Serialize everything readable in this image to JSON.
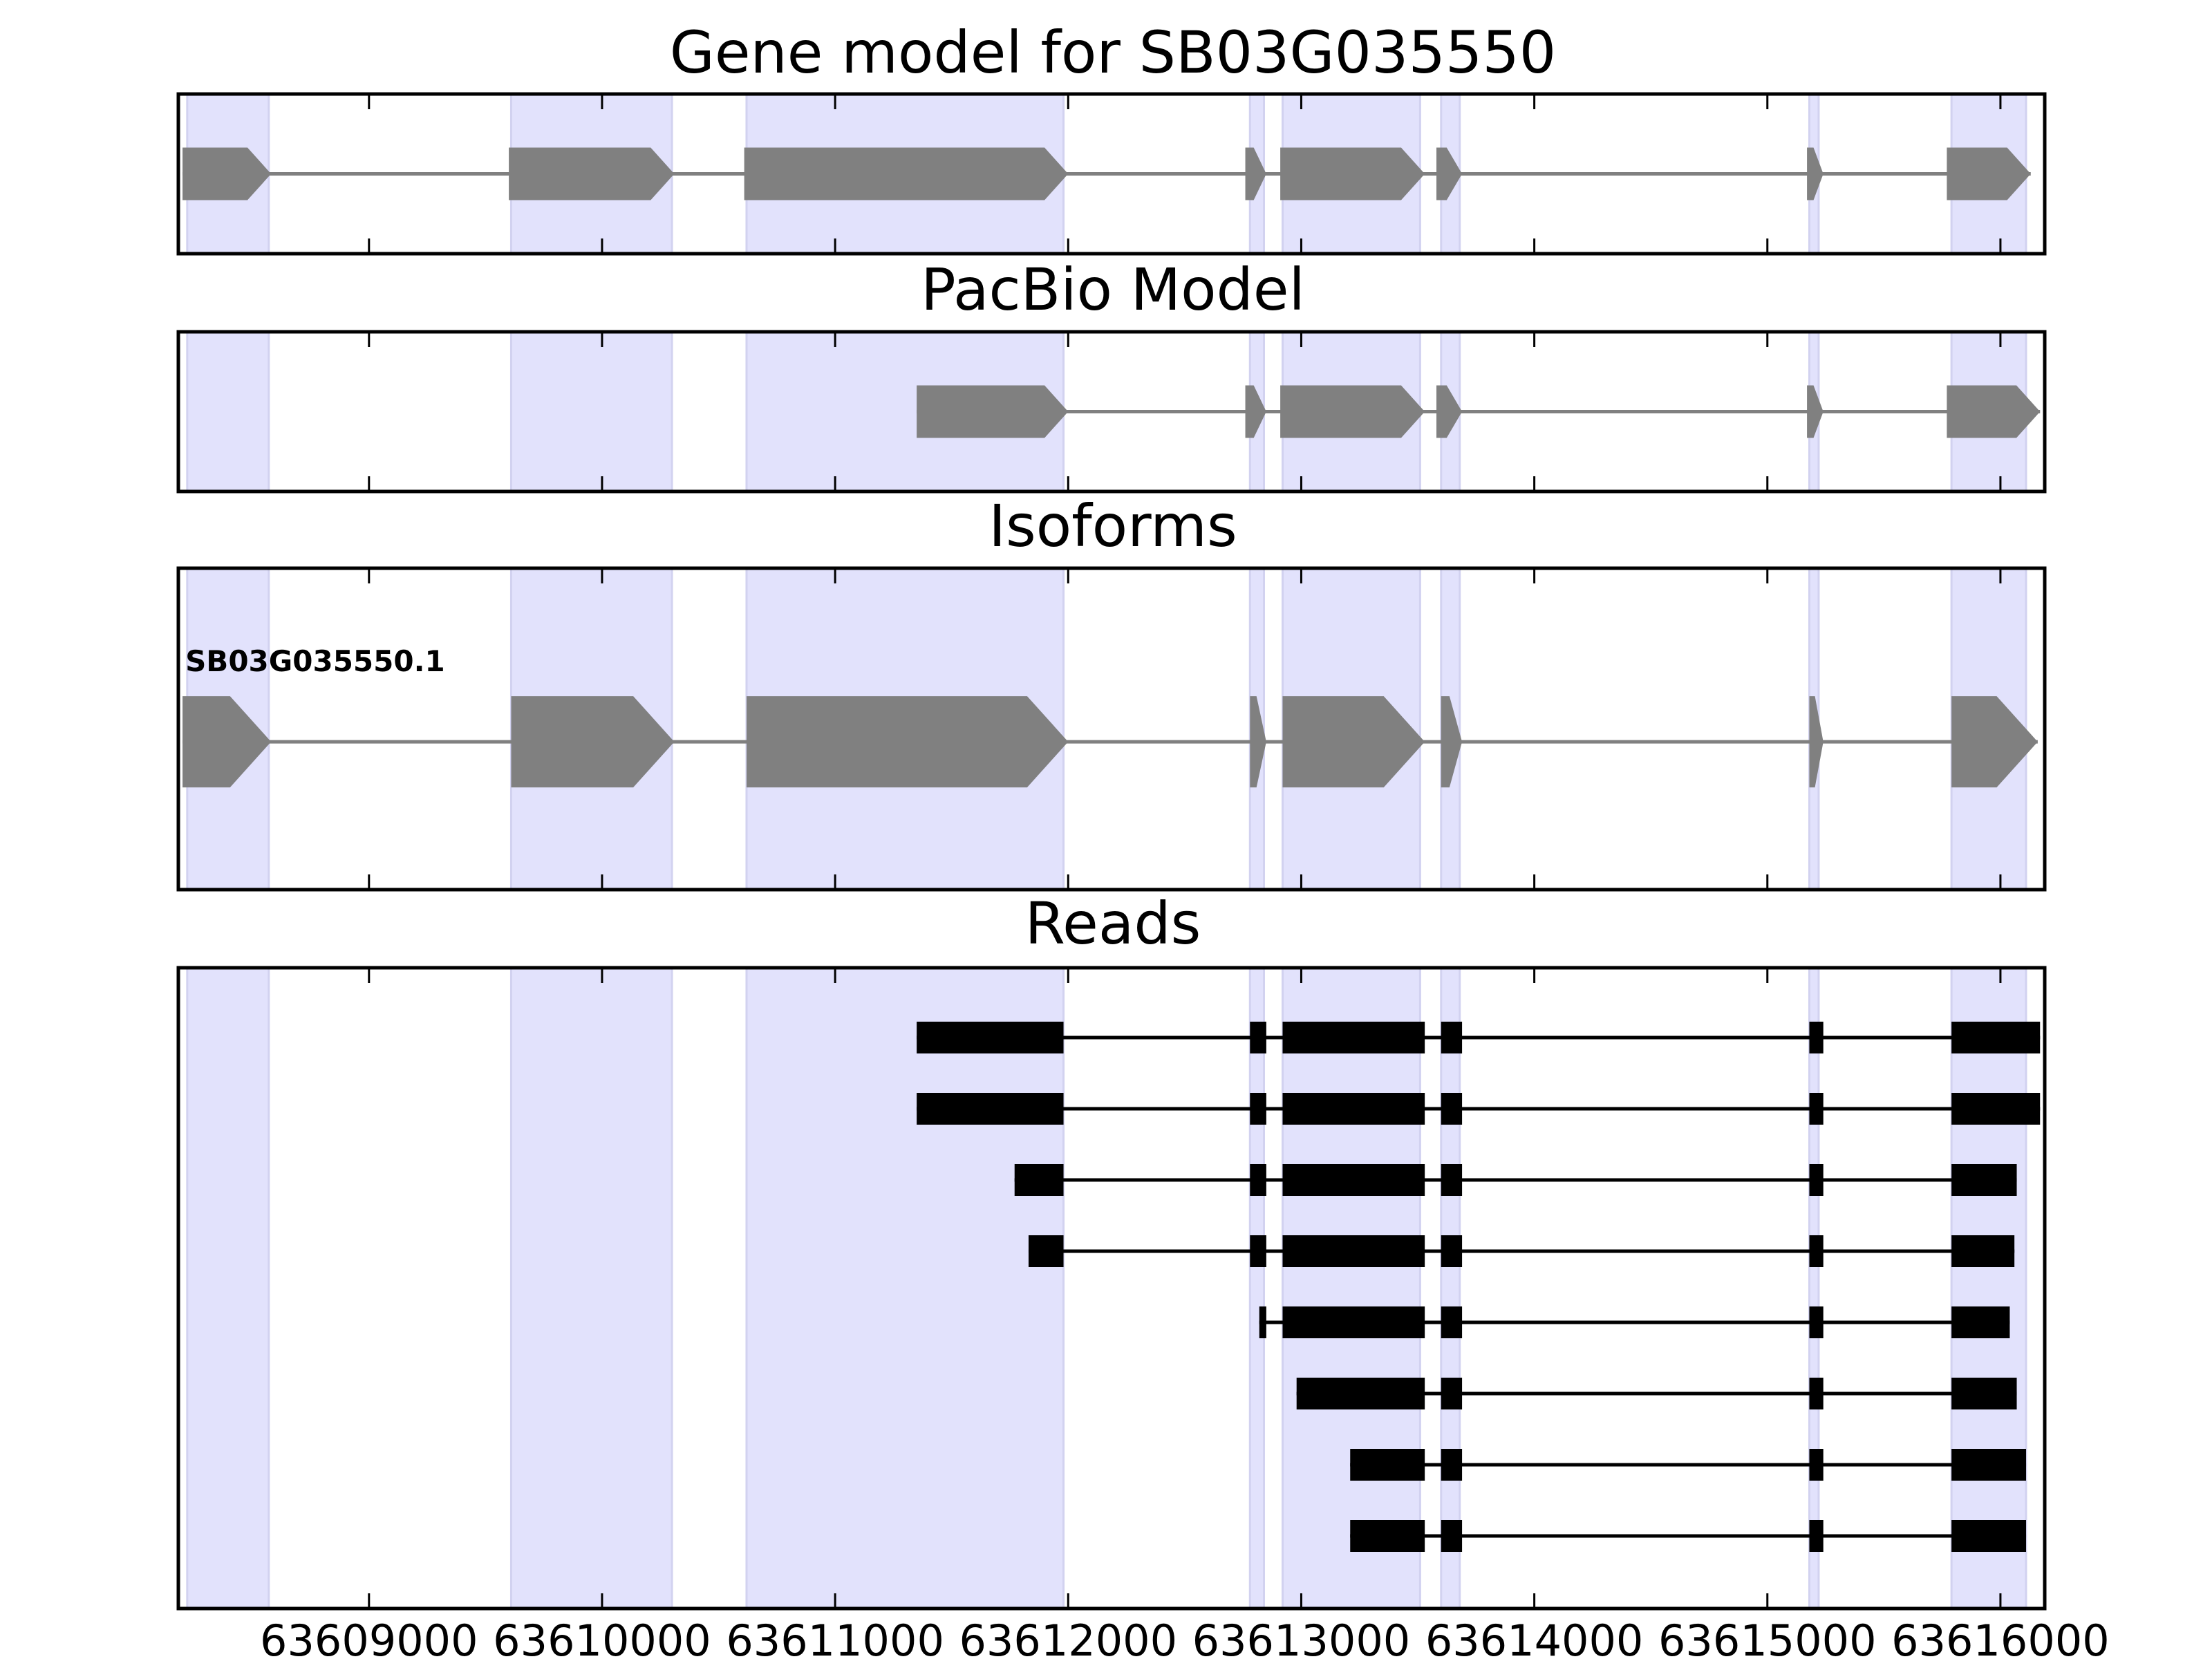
{
  "colors": {
    "exon_region": "#e2e2fc",
    "exon_region_edge": "#d2d2f0",
    "gene_shape": "#808080",
    "read": "#000000",
    "frame": "#000000"
  },
  "chart_data": {
    "type": "gene-structure",
    "xlim": [
      63608182,
      63616190
    ],
    "xticks": [
      63609000,
      63610000,
      63611000,
      63612000,
      63613000,
      63614000,
      63615000,
      63616000
    ],
    "xtick_labels": [
      "63609000",
      "63610000",
      "63611000",
      "63612000",
      "63613000",
      "63614000",
      "63615000",
      "63616000"
    ],
    "exon_regions": [
      [
        63608220,
        63608570
      ],
      [
        63609610,
        63610300
      ],
      [
        63610620,
        63611980
      ],
      [
        63612780,
        63612840
      ],
      [
        63612920,
        63613510
      ],
      [
        63613600,
        63613680
      ],
      [
        63615180,
        63615220
      ],
      [
        63615790,
        63616110
      ]
    ],
    "panels": [
      {
        "title": "Gene model for SB03G035550",
        "kind": "model",
        "models": [
          {
            "label": "",
            "strand": "+",
            "exons": [
              [
                63608200,
                63608580
              ],
              [
                63609600,
                63610310
              ],
              [
                63610610,
                63612000
              ],
              [
                63612760,
                63612850
              ],
              [
                63612910,
                63613530
              ],
              [
                63613580,
                63613690
              ],
              [
                63615170,
                63615240
              ],
              [
                63615770,
                63616130
              ]
            ]
          }
        ]
      },
      {
        "title": "PacBio Model",
        "kind": "model",
        "models": [
          {
            "label": "",
            "strand": "+",
            "exons": [
              [
                63611350,
                63612000
              ],
              [
                63612760,
                63612850
              ],
              [
                63612910,
                63613530
              ],
              [
                63613580,
                63613690
              ],
              [
                63615170,
                63615240
              ],
              [
                63615770,
                63616170
              ]
            ]
          }
        ]
      },
      {
        "title": "Isoforms",
        "kind": "isoform",
        "models": [
          {
            "label": "SB03G035550.1",
            "strand": "+",
            "exons": [
              [
                63608200,
                63608580
              ],
              [
                63609610,
                63610310
              ],
              [
                63610620,
                63612000
              ],
              [
                63612780,
                63612850
              ],
              [
                63612920,
                63613530
              ],
              [
                63613600,
                63613690
              ],
              [
                63615180,
                63615240
              ],
              [
                63615790,
                63616160
              ]
            ]
          }
        ]
      },
      {
        "title": "Reads",
        "kind": "reads",
        "reads": [
          {
            "exons": [
              [
                63611350,
                63611980
              ],
              [
                63612780,
                63612850
              ],
              [
                63612920,
                63613530
              ],
              [
                63613600,
                63613690
              ],
              [
                63615180,
                63615240
              ],
              [
                63615790,
                63616170
              ]
            ]
          },
          {
            "exons": [
              [
                63611350,
                63611980
              ],
              [
                63612780,
                63612850
              ],
              [
                63612920,
                63613530
              ],
              [
                63613600,
                63613690
              ],
              [
                63615180,
                63615240
              ],
              [
                63615790,
                63616170
              ]
            ]
          },
          {
            "exons": [
              [
                63611770,
                63611980
              ],
              [
                63612780,
                63612850
              ],
              [
                63612920,
                63613530
              ],
              [
                63613600,
                63613690
              ],
              [
                63615180,
                63615240
              ],
              [
                63615790,
                63616070
              ]
            ]
          },
          {
            "exons": [
              [
                63611830,
                63611980
              ],
              [
                63612780,
                63612850
              ],
              [
                63612920,
                63613530
              ],
              [
                63613600,
                63613690
              ],
              [
                63615180,
                63615240
              ],
              [
                63615790,
                63616060
              ]
            ]
          },
          {
            "exons": [
              [
                63612820,
                63612850
              ],
              [
                63612920,
                63613530
              ],
              [
                63613600,
                63613690
              ],
              [
                63615180,
                63615240
              ],
              [
                63615790,
                63616040
              ]
            ]
          },
          {
            "exons": [
              [
                63612980,
                63613530
              ],
              [
                63613600,
                63613690
              ],
              [
                63615180,
                63615240
              ],
              [
                63615790,
                63616070
              ]
            ]
          },
          {
            "exons": [
              [
                63613210,
                63613530
              ],
              [
                63613600,
                63613690
              ],
              [
                63615180,
                63615240
              ],
              [
                63615790,
                63616110
              ]
            ]
          },
          {
            "exons": [
              [
                63613210,
                63613530
              ],
              [
                63613600,
                63613690
              ],
              [
                63615180,
                63615240
              ],
              [
                63615790,
                63616110
              ]
            ]
          }
        ]
      }
    ]
  }
}
